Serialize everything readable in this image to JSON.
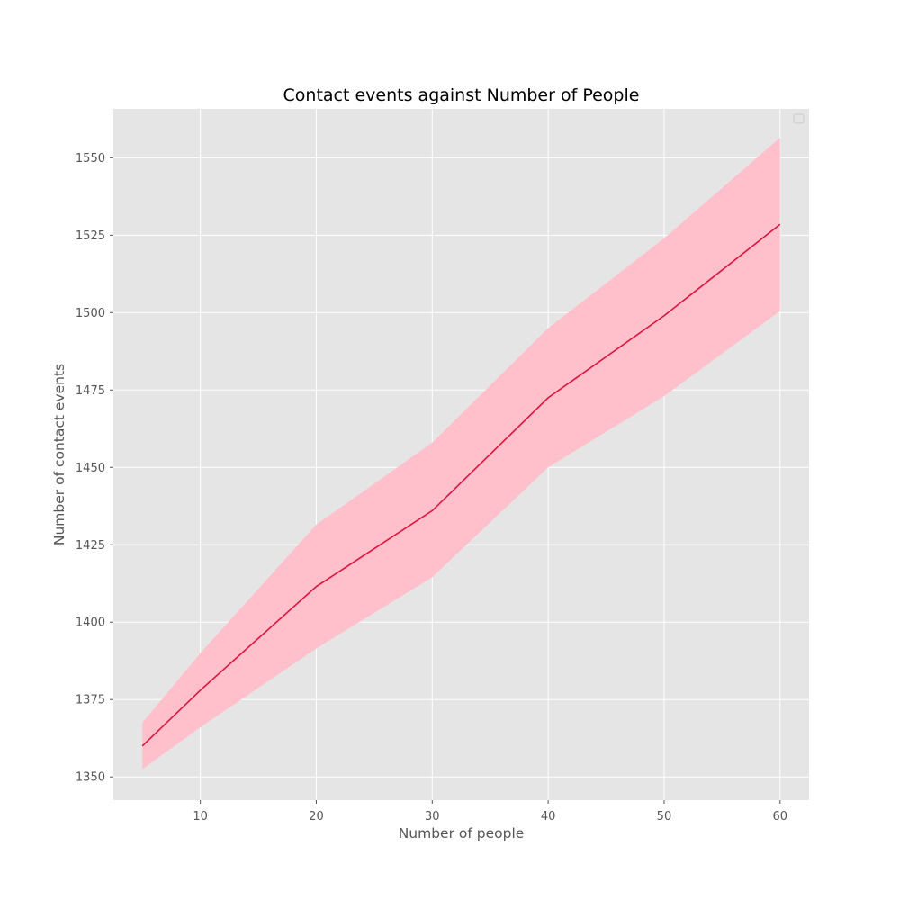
{
  "chart_data": {
    "type": "line",
    "title": "Contact events against Number of People",
    "xlabel": "Number of people",
    "ylabel": "Number of contact events",
    "xlim": [
      2.5,
      62.5
    ],
    "ylim": [
      1342.5,
      1565.8
    ],
    "x_ticks": [
      10,
      20,
      30,
      40,
      50,
      60
    ],
    "y_ticks": [
      1350,
      1375,
      1400,
      1425,
      1450,
      1475,
      1500,
      1525,
      1550
    ],
    "grid": true,
    "legend": "top-right",
    "series": [
      {
        "x": [
          5,
          10,
          20,
          30,
          40,
          50,
          60
        ],
        "y": [
          1360,
          1378,
          1411.5,
          1436,
          1472.5,
          1499,
          1528.5
        ],
        "lower": [
          1352.5,
          1366,
          1391.5,
          1414.5,
          1450,
          1473,
          1500.5
        ],
        "upper": [
          1367.5,
          1390,
          1431.5,
          1458,
          1495,
          1524,
          1556.5
        ]
      }
    ],
    "colors": {
      "line": "#dc143c",
      "band": "#ffc0cb",
      "plot_background": "#e5e5e5",
      "grid": "#ffffff"
    }
  }
}
